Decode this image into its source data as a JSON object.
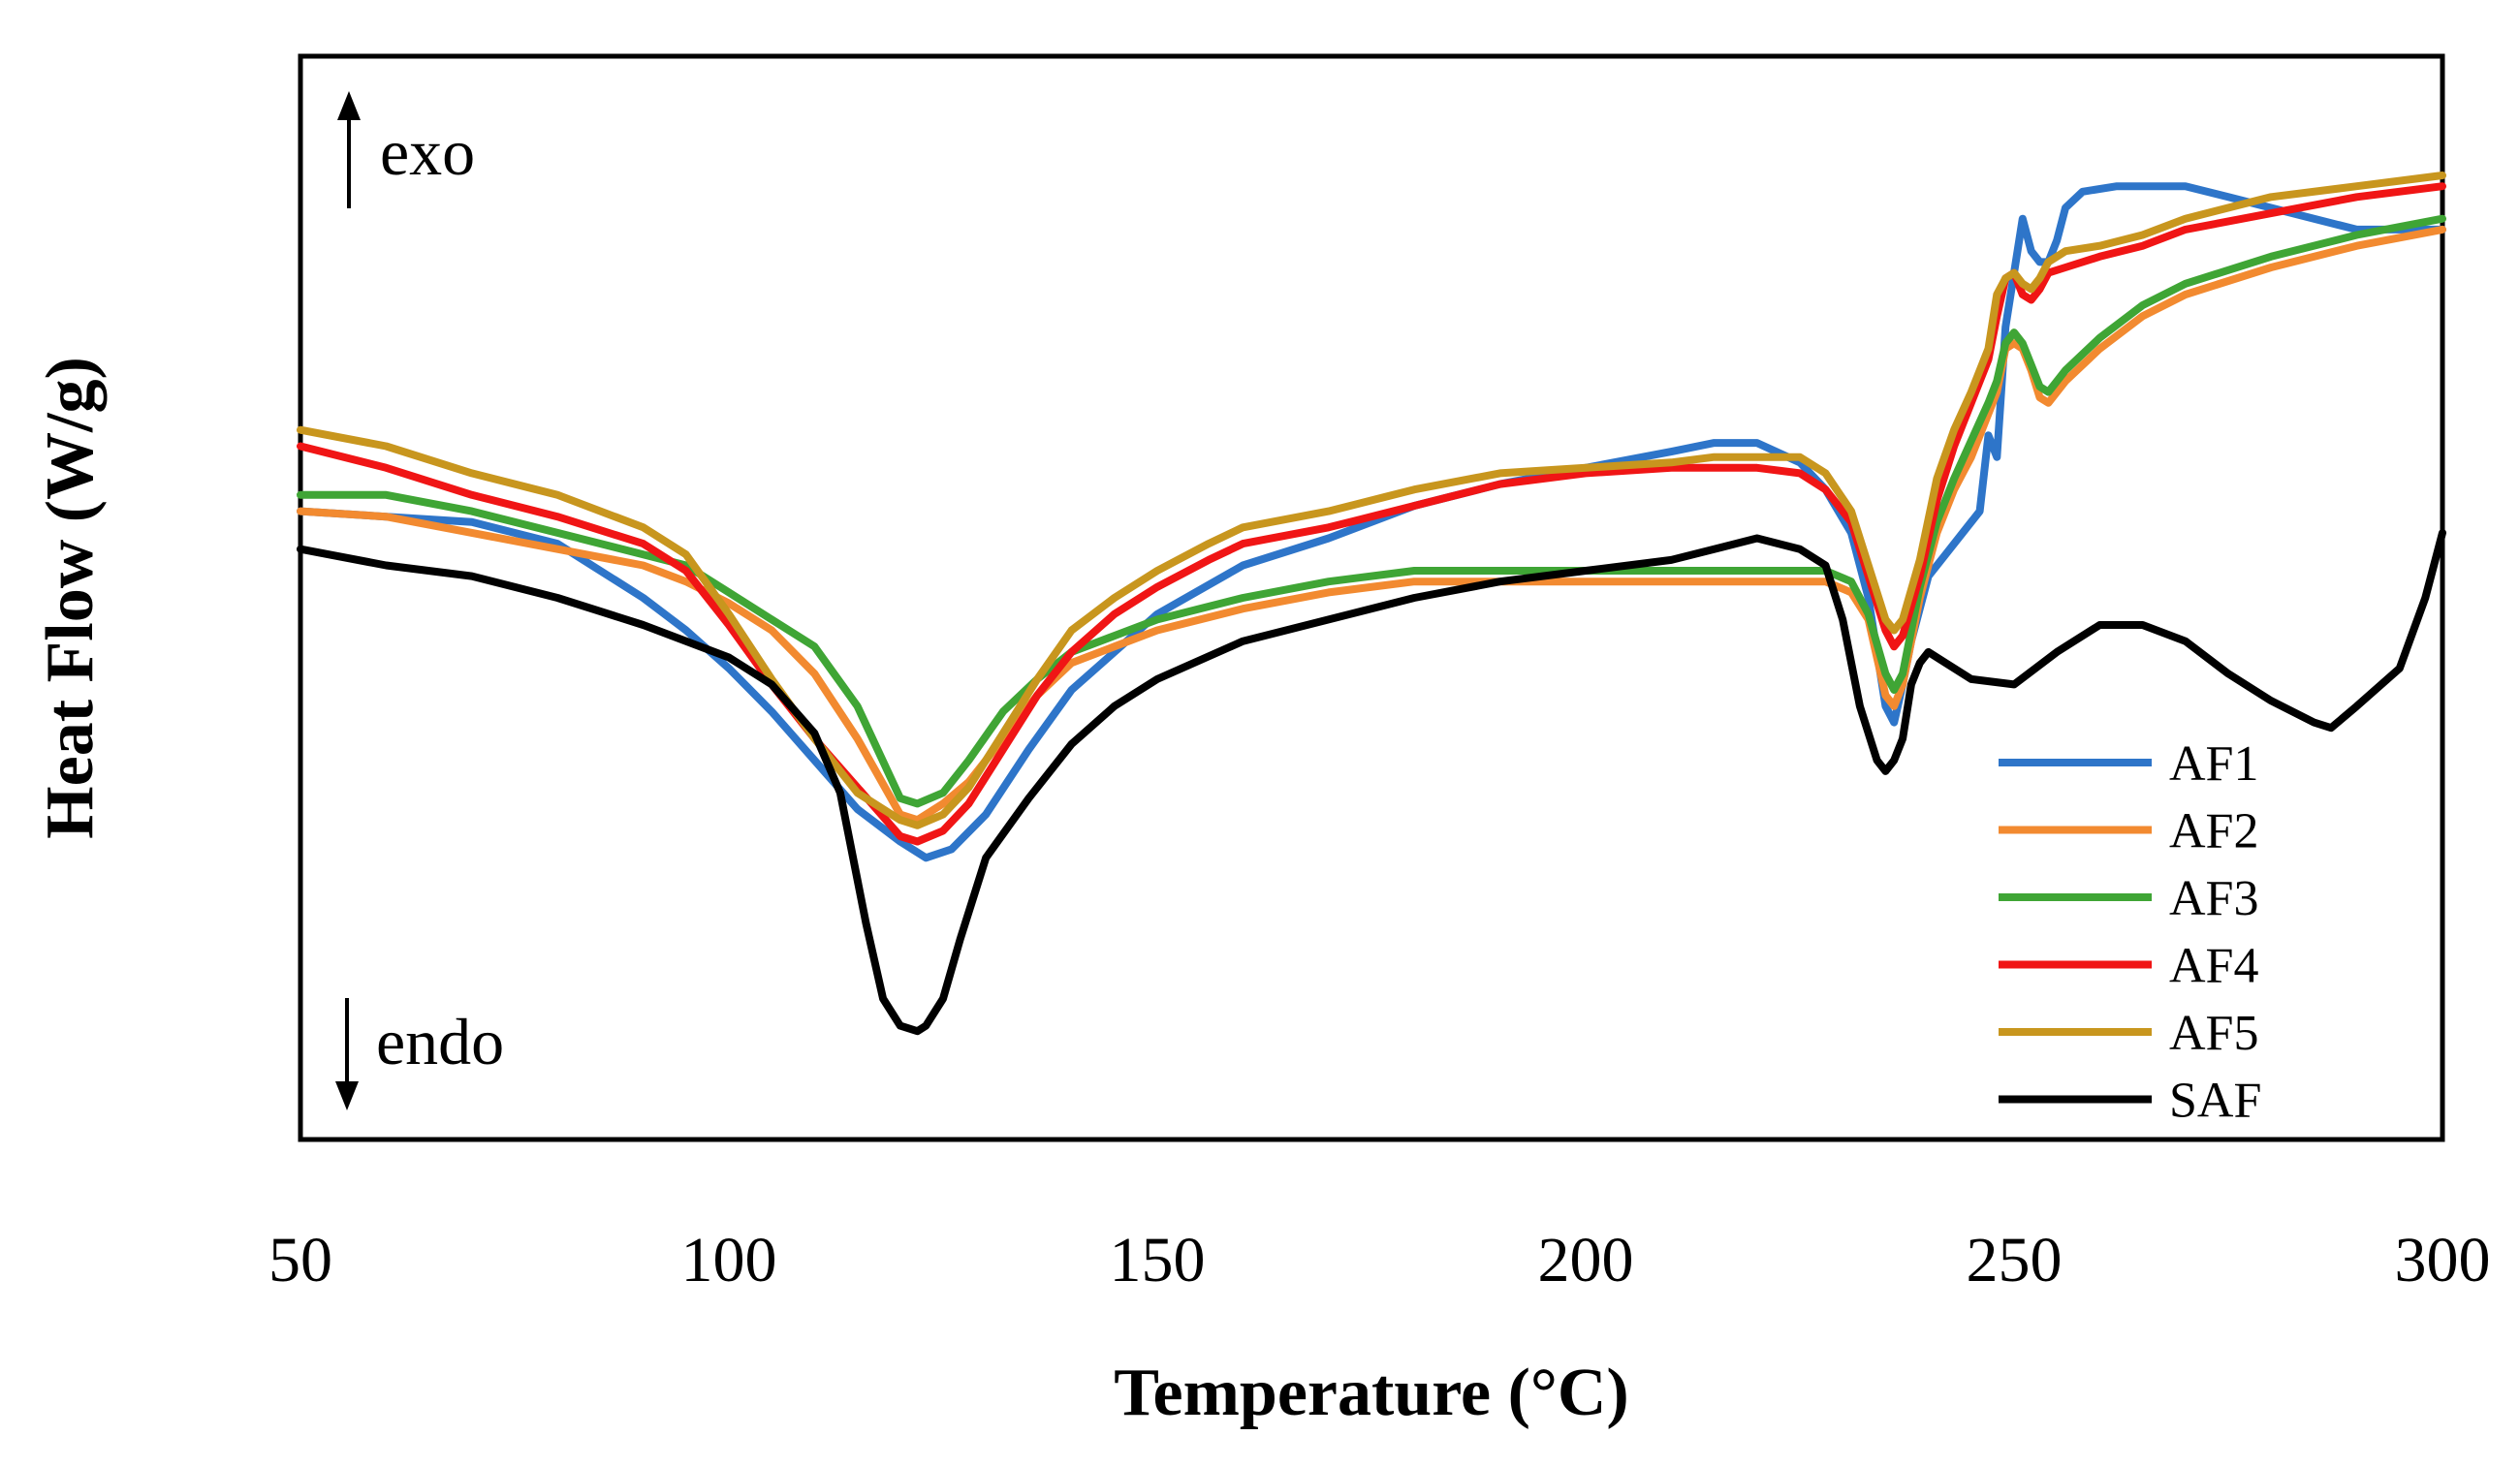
{
  "chart_data": {
    "type": "line",
    "title": "",
    "xlabel": "Temperature (°C)",
    "ylabel": "Heat Flow (W/g)",
    "xlim": [
      50,
      300
    ],
    "ylim": [
      0,
      100
    ],
    "xticks": [
      "50",
      "100",
      "150",
      "200",
      "250",
      "300"
    ],
    "xtick_values": [
      50,
      100,
      150,
      200,
      250,
      300
    ],
    "annotations": {
      "exo": "exo",
      "endo": "endo"
    },
    "grid": false,
    "legend_position": "bottom-right",
    "series": [
      {
        "name": "AF1",
        "color": "#2E75C9",
        "x": [
          50,
          60,
          70,
          80,
          90,
          95,
          100,
          105,
          110,
          115,
          120,
          123,
          126,
          130,
          135,
          140,
          145,
          150,
          160,
          170,
          180,
          190,
          200,
          210,
          215,
          220,
          225,
          228,
          231,
          233,
          235,
          236,
          237,
          238,
          240,
          242,
          244,
          246,
          247,
          248,
          249,
          250,
          251,
          252,
          253,
          254,
          255,
          256,
          258,
          262,
          266,
          270,
          275,
          280,
          285,
          290,
          295,
          300
        ],
        "y": [
          58,
          57.5,
          57,
          55,
          50,
          47,
          43.5,
          39.5,
          35,
          30.5,
          27.5,
          26,
          26.8,
          30,
          36,
          41.5,
          45,
          48.5,
          53,
          55.5,
          58.5,
          60.5,
          62,
          63.5,
          64.3,
          64.3,
          62.5,
          60,
          56,
          50,
          40,
          38.5,
          42,
          46,
          52,
          54,
          56,
          58,
          65,
          63,
          75,
          80,
          85,
          82,
          81,
          81,
          83,
          86,
          87.5,
          88,
          88,
          88,
          87,
          86,
          85,
          84,
          84,
          84
        ]
      },
      {
        "name": "AF2",
        "color": "#F28A30",
        "x": [
          50,
          60,
          70,
          80,
          90,
          95,
          100,
          105,
          110,
          115,
          120,
          122,
          125,
          128,
          132,
          136,
          140,
          145,
          150,
          160,
          170,
          180,
          190,
          200,
          210,
          220,
          228,
          231,
          233,
          235,
          236,
          237,
          239,
          241,
          243,
          245,
          247,
          248,
          249,
          250,
          251,
          252,
          253,
          254,
          256,
          260,
          265,
          270,
          280,
          290,
          300
        ],
        "y": [
          58,
          57.5,
          56,
          54.5,
          53,
          51.5,
          49.5,
          47,
          43,
          37,
          30,
          29.5,
          31,
          33,
          37,
          41,
          44,
          45.5,
          47,
          49,
          50.5,
          51.5,
          51.5,
          51.5,
          51.5,
          51.5,
          51.5,
          50.5,
          48,
          41,
          40,
          42,
          50,
          56,
          60,
          63,
          67,
          69,
          73,
          73.5,
          73,
          71,
          68.5,
          68,
          70,
          73,
          76,
          78,
          80.5,
          82.5,
          84
        ]
      },
      {
        "name": "AF3",
        "color": "#3FA535",
        "x": [
          50,
          60,
          70,
          80,
          90,
          95,
          100,
          105,
          110,
          115,
          120,
          122,
          125,
          128,
          132,
          136,
          140,
          145,
          150,
          160,
          170,
          180,
          190,
          200,
          210,
          220,
          228,
          231,
          233,
          235,
          236,
          237,
          239,
          241,
          243,
          245,
          247,
          248,
          249,
          250,
          251,
          252,
          253,
          254,
          256,
          260,
          265,
          270,
          280,
          290,
          300
        ],
        "y": [
          59.5,
          59.5,
          58,
          56,
          54,
          53,
          50.5,
          48,
          45.5,
          40,
          31.5,
          31,
          32,
          35,
          39.5,
          42.5,
          45,
          46.5,
          48,
          50,
          51.5,
          52.5,
          52.5,
          52.5,
          52.5,
          52.5,
          52.5,
          51.5,
          48.5,
          43,
          41.5,
          43,
          51,
          57,
          61,
          64.5,
          68,
          70,
          73.5,
          74.5,
          73.5,
          71.5,
          69.5,
          69,
          71,
          74,
          77,
          79,
          81.5,
          83.5,
          85
        ]
      },
      {
        "name": "AF4",
        "color": "#F01515",
        "x": [
          50,
          60,
          70,
          80,
          90,
          95,
          100,
          105,
          110,
          115,
          120,
          122,
          125,
          128,
          132,
          136,
          140,
          145,
          150,
          156,
          160,
          170,
          180,
          190,
          200,
          210,
          215,
          220,
          225,
          228,
          231,
          233,
          235,
          236,
          237,
          239,
          241,
          243,
          245,
          247,
          248,
          249,
          250,
          251,
          252,
          253,
          254,
          256,
          260,
          265,
          270,
          280,
          290,
          300
        ],
        "y": [
          64,
          62,
          59.5,
          57.5,
          55,
          52.5,
          47.5,
          42,
          37,
          32.5,
          28,
          27.5,
          28.5,
          31,
          36,
          41,
          45,
          48.5,
          51,
          53.5,
          55,
          56.5,
          58.5,
          60.5,
          61.5,
          62,
          62,
          62,
          61.5,
          60,
          57,
          52,
          47,
          45.5,
          46.5,
          52,
          59,
          64,
          68,
          72,
          76,
          79.5,
          80,
          78,
          77.5,
          78.5,
          80,
          80.5,
          81.5,
          82.5,
          84,
          85.5,
          87,
          88
        ]
      },
      {
        "name": "AF5",
        "color": "#C8961E",
        "x": [
          50,
          60,
          70,
          80,
          90,
          95,
          100,
          105,
          110,
          115,
          120,
          122,
          125,
          128,
          132,
          136,
          140,
          145,
          150,
          156,
          160,
          170,
          180,
          190,
          200,
          210,
          215,
          220,
          225,
          228,
          231,
          233,
          235,
          236,
          237,
          239,
          241,
          243,
          245,
          247,
          248,
          249,
          250,
          251,
          252,
          253,
          254,
          256,
          260,
          265,
          270,
          280,
          290,
          300
        ],
        "y": [
          65.5,
          64,
          61.5,
          59.5,
          56.5,
          54,
          48.5,
          42.5,
          37,
          32,
          29.5,
          29,
          30,
          32.5,
          37.5,
          42.5,
          47,
          50,
          52.5,
          55,
          56.5,
          58,
          60,
          61.5,
          62,
          62.5,
          63,
          63,
          63,
          61.5,
          58,
          53,
          48,
          47,
          48,
          53.5,
          61,
          65.5,
          69,
          73,
          78,
          79.5,
          80,
          79,
          78.5,
          79.5,
          81,
          82,
          82.5,
          83.5,
          85,
          87,
          88,
          89
        ]
      },
      {
        "name": "SAF",
        "color": "#000000",
        "x": [
          50,
          60,
          70,
          80,
          90,
          95,
          100,
          105,
          110,
          113,
          116,
          118,
          120,
          122,
          123,
          125,
          127,
          130,
          135,
          140,
          145,
          150,
          160,
          170,
          180,
          190,
          200,
          210,
          215,
          220,
          225,
          228,
          230,
          232,
          234,
          235,
          236,
          237,
          238,
          239,
          240,
          242,
          245,
          250,
          255,
          260,
          265,
          270,
          275,
          280,
          285,
          287,
          290,
          295,
          298,
          300
        ],
        "y": [
          54.5,
          53,
          52,
          50,
          47.5,
          46,
          44.5,
          42,
          37.5,
          32,
          20,
          13,
          10.5,
          10,
          10.5,
          13,
          18.5,
          26,
          31.5,
          36.5,
          40,
          42.5,
          46,
          48,
          50,
          51.5,
          52.5,
          53.5,
          54.5,
          55.5,
          54.5,
          53,
          48,
          40,
          35,
          34,
          35,
          37,
          42,
          44,
          45,
          44,
          42.5,
          42,
          45,
          47.5,
          47.5,
          46,
          43,
          40.5,
          38.5,
          38,
          40,
          43.5,
          50,
          56
        ]
      }
    ]
  }
}
